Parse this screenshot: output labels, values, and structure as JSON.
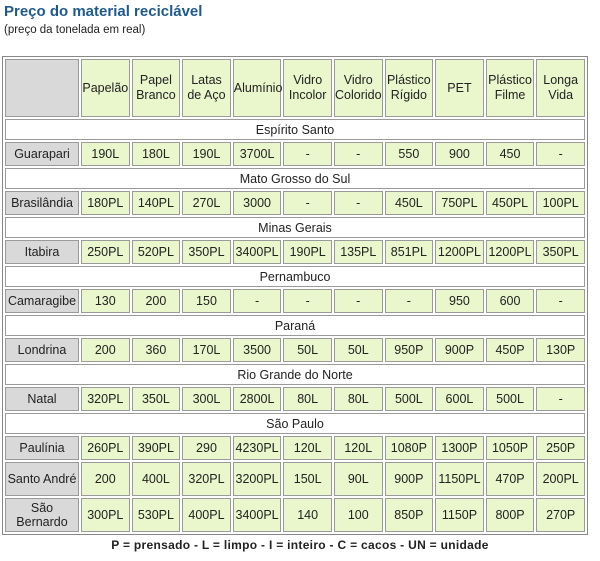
{
  "title": "Preço do material reciclável",
  "subtitle": "(preço da tonelada em real)",
  "columns": [
    "Papelão",
    "Papel Branco",
    "Latas de Aço",
    "Alumínio",
    "Vidro Incolor",
    "Vidro Colorido",
    "Plástico Rígido",
    "PET",
    "Plástico Filme",
    "Longa Vida"
  ],
  "groups": [
    {
      "state": "Espírito Santo",
      "cities": [
        {
          "name": "Guarapari",
          "values": [
            "190L",
            "180L",
            "190L",
            "3700L",
            "-",
            "-",
            "550",
            "900",
            "450",
            "-"
          ]
        }
      ]
    },
    {
      "state": "Mato Grosso do Sul",
      "cities": [
        {
          "name": "Brasilândia",
          "values": [
            "180PL",
            "140PL",
            "270L",
            "3000",
            "-",
            "-",
            "450L",
            "750PL",
            "450PL",
            "100PL"
          ]
        }
      ]
    },
    {
      "state": "Minas Gerais",
      "cities": [
        {
          "name": "Itabira",
          "values": [
            "250PL",
            "520PL",
            "350PL",
            "3400PL",
            "190PL",
            "135PL",
            "851PL",
            "1200PL",
            "1200PL",
            "350PL"
          ]
        }
      ]
    },
    {
      "state": "Pernambuco",
      "cities": [
        {
          "name": "Camaragibe",
          "values": [
            "130",
            "200",
            "150",
            "-",
            "-",
            "-",
            "-",
            "950",
            "600",
            "-"
          ]
        }
      ]
    },
    {
      "state": "Paraná",
      "cities": [
        {
          "name": "Londrina",
          "values": [
            "200",
            "360",
            "170L",
            "3500",
            "50L",
            "50L",
            "950P",
            "900P",
            "450P",
            "130P"
          ]
        }
      ]
    },
    {
      "state": "Rio Grande do Norte",
      "cities": [
        {
          "name": "Natal",
          "values": [
            "320PL",
            "350L",
            "300L",
            "2800L",
            "80L",
            "80L",
            "500L",
            "600L",
            "500L",
            "-"
          ]
        }
      ]
    },
    {
      "state": "São Paulo",
      "cities": [
        {
          "name": "Paulínia",
          "values": [
            "260PL",
            "390PL",
            "290",
            "4230PL",
            "120L",
            "120L",
            "1080P",
            "1300P",
            "1050P",
            "250P"
          ]
        },
        {
          "name": "Santo André",
          "values": [
            "200",
            "400L",
            "320PL",
            "3200PL",
            "150L",
            "90L",
            "900P",
            "1150PL",
            "470P",
            "200PL"
          ]
        },
        {
          "name": "São Bernardo",
          "values": [
            "300PL",
            "530PL",
            "400PL",
            "3400PL",
            "140",
            "100",
            "850P",
            "1150P",
            "800P",
            "270P"
          ]
        }
      ]
    }
  ],
  "legend": "P = prensado -  L = limpo  -  I = inteiro - C = cacos -  UN = unidade"
}
